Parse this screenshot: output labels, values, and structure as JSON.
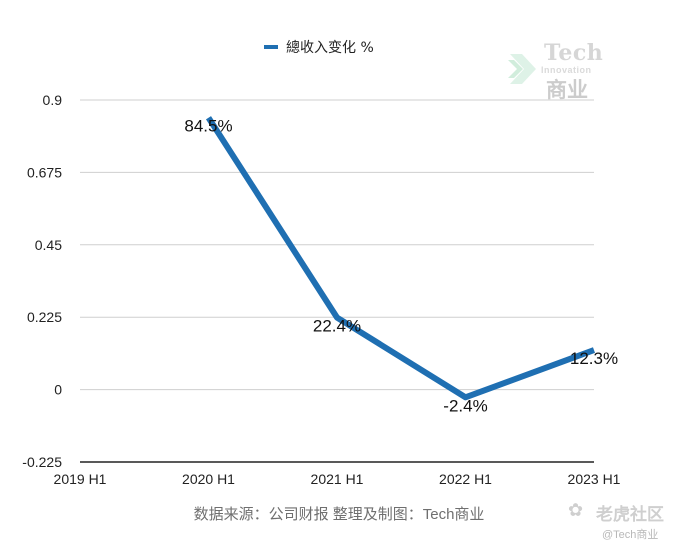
{
  "chart_data": {
    "type": "line",
    "title": "",
    "categories": [
      "2019 H1",
      "2020 H1",
      "2021 H1",
      "2022 H1",
      "2023 H1"
    ],
    "series": [
      {
        "name": "總收入变化 %",
        "color": "#1f6fb2",
        "values": [
          null,
          0.845,
          0.224,
          -0.024,
          0.123
        ],
        "labels": [
          "",
          "84.5%",
          "22.4%",
          "-2.4%",
          "12.3%"
        ]
      }
    ],
    "yticks": [
      -0.225,
      0,
      0.225,
      0.45,
      0.675,
      0.9
    ],
    "ytick_labels": [
      "-0.225",
      "0",
      "0.225",
      "0.45",
      "0.675",
      "0.9"
    ],
    "ylim": [
      -0.225,
      0.9
    ],
    "xlabel": "",
    "ylabel": "",
    "grid": true,
    "legend": "top-center"
  },
  "footer": {
    "source": "数据来源：公司财报 整理及制图：Tech商业"
  },
  "watermark": {
    "tech": "Tech",
    "innovation": "Innovation",
    "brand_cn": "商业"
  },
  "corner_watermark": {
    "name": "老虎社区",
    "handle": "@Tech商业"
  }
}
